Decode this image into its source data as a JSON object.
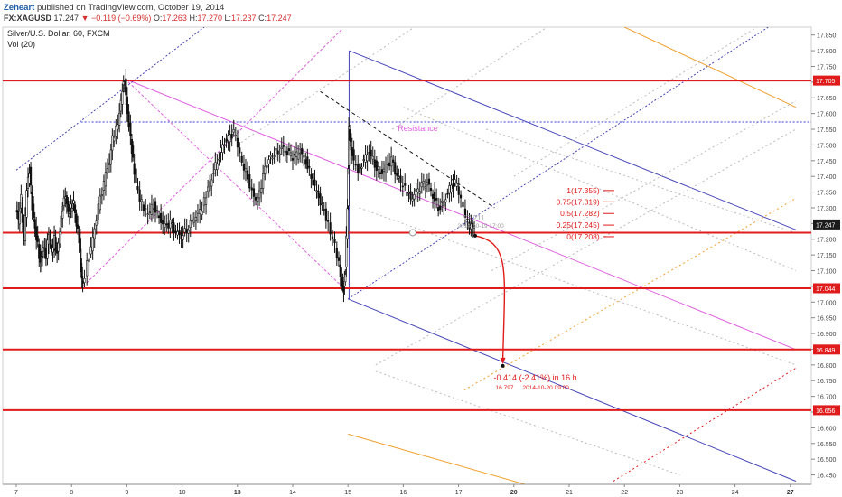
{
  "header": {
    "brand": "Zeheart",
    "published": " published on TradingView.com, October 19, 2014"
  },
  "symbol_line": {
    "symbol": "FX:XAGUSD",
    "last": "17.247",
    "change": "▼ −0.119 (−0.69%)",
    "o_label": "O:",
    "o": "17.263",
    "h_label": "H:",
    "h": "17.270",
    "l_label": "L:",
    "l": "17.237",
    "c_label": "C:",
    "c": "17.247"
  },
  "chart_title": "Silver/U.S. Dollar, 60, FXCM",
  "volume_label": "Vol (20)",
  "colors": {
    "support_line": "#e01b1b",
    "resistance_line": "#3a3ad8",
    "pitchfork_blue": "#4646b8",
    "pitchfork_magenta": "#e060e0",
    "orange": "#f0a030",
    "candle": "#111111",
    "fib_text": "#e01b1b",
    "current_price_bg": "#1a1a1a"
  },
  "chart_data": {
    "type": "candlestick",
    "y_ticks": [
      "17.850",
      "17.800",
      "17.750",
      "17.700",
      "17.650",
      "17.600",
      "17.550",
      "17.500",
      "17.450",
      "17.400",
      "17.350",
      "17.300",
      "17.250",
      "17.200",
      "17.150",
      "17.100",
      "17.050",
      "17.000",
      "16.950",
      "16.900",
      "16.850",
      "16.800",
      "16.750",
      "16.700",
      "16.650",
      "16.600",
      "16.550",
      "16.500",
      "16.450"
    ],
    "ylim": [
      16.42,
      17.875
    ],
    "x_ticks": [
      {
        "label": "7",
        "x": 0,
        "bold": false
      },
      {
        "label": "8",
        "x": 1,
        "bold": false
      },
      {
        "label": "9",
        "x": 2,
        "bold": false
      },
      {
        "label": "10",
        "x": 3,
        "bold": false
      },
      {
        "label": "13",
        "x": 4,
        "bold": true
      },
      {
        "label": "14",
        "x": 5,
        "bold": false
      },
      {
        "label": "15",
        "x": 6,
        "bold": false
      },
      {
        "label": "16",
        "x": 7,
        "bold": false
      },
      {
        "label": "17",
        "x": 8,
        "bold": false
      },
      {
        "label": "20",
        "x": 9,
        "bold": true
      },
      {
        "label": "21",
        "x": 10,
        "bold": false
      },
      {
        "label": "22",
        "x": 11,
        "bold": false
      },
      {
        "label": "23",
        "x": 12,
        "bold": false
      },
      {
        "label": "24",
        "x": 13,
        "bold": false
      },
      {
        "label": "27",
        "x": 14,
        "bold": true
      }
    ],
    "support_levels": [
      "17.705",
      "17.044",
      "16.849",
      "16.656"
    ],
    "extra_horizontal": [
      17.221
    ],
    "resistance": {
      "label": "Resistance",
      "value": 17.573
    },
    "current_price": "17.247",
    "fib_levels": [
      {
        "label": "1(17.355)",
        "value": 17.355
      },
      {
        "label": "0.75(17.319)",
        "value": 17.319
      },
      {
        "label": "0.5(17.282)",
        "value": 17.282
      },
      {
        "label": "0.25(17.245)",
        "value": 17.245
      },
      {
        "label": "0(17.208)",
        "value": 17.208
      }
    ],
    "projection": {
      "text": "-0.414 (-2.41%) in 16 h",
      "price": "16.797",
      "date": "2014-10-20  09:00",
      "start": {
        "x": 8.3,
        "y": 17.211
      },
      "end": {
        "x": 8.8,
        "y": 16.797
      }
    },
    "marker_label": "17.211",
    "marker_date": "2014-10-19  17:00",
    "close_path": [
      [
        0.0,
        17.3
      ],
      [
        0.05,
        17.26
      ],
      [
        0.1,
        17.33
      ],
      [
        0.15,
        17.2
      ],
      [
        0.2,
        17.36
      ],
      [
        0.25,
        17.42
      ],
      [
        0.3,
        17.3
      ],
      [
        0.35,
        17.23
      ],
      [
        0.4,
        17.18
      ],
      [
        0.45,
        17.12
      ],
      [
        0.5,
        17.18
      ],
      [
        0.55,
        17.15
      ],
      [
        0.6,
        17.22
      ],
      [
        0.65,
        17.16
      ],
      [
        0.7,
        17.2
      ],
      [
        0.75,
        17.15
      ],
      [
        0.8,
        17.23
      ],
      [
        0.85,
        17.3
      ],
      [
        0.9,
        17.34
      ],
      [
        0.95,
        17.28
      ],
      [
        1.0,
        17.3
      ],
      [
        1.05,
        17.32
      ],
      [
        1.1,
        17.25
      ],
      [
        1.15,
        17.2
      ],
      [
        1.18,
        17.1
      ],
      [
        1.21,
        17.05
      ],
      [
        1.3,
        17.12
      ],
      [
        1.4,
        17.2
      ],
      [
        1.5,
        17.3
      ],
      [
        1.6,
        17.38
      ],
      [
        1.7,
        17.45
      ],
      [
        1.75,
        17.52
      ],
      [
        1.82,
        17.55
      ],
      [
        1.88,
        17.6
      ],
      [
        1.93,
        17.68
      ],
      [
        1.97,
        17.7
      ],
      [
        2.02,
        17.6
      ],
      [
        2.08,
        17.52
      ],
      [
        2.12,
        17.45
      ],
      [
        2.18,
        17.38
      ],
      [
        2.25,
        17.33
      ],
      [
        2.32,
        17.3
      ],
      [
        2.4,
        17.28
      ],
      [
        2.5,
        17.31
      ],
      [
        2.6,
        17.27
      ],
      [
        2.7,
        17.24
      ],
      [
        2.8,
        17.25
      ],
      [
        2.9,
        17.22
      ],
      [
        3.0,
        17.21
      ],
      [
        3.1,
        17.23
      ],
      [
        3.2,
        17.26
      ],
      [
        3.3,
        17.28
      ],
      [
        3.38,
        17.3
      ],
      [
        3.45,
        17.34
      ],
      [
        3.55,
        17.4
      ],
      [
        3.65,
        17.45
      ],
      [
        3.75,
        17.5
      ],
      [
        3.85,
        17.52
      ],
      [
        3.95,
        17.54
      ],
      [
        4.02,
        17.5
      ],
      [
        4.1,
        17.44
      ],
      [
        4.2,
        17.4
      ],
      [
        4.28,
        17.35
      ],
      [
        4.38,
        17.32
      ],
      [
        4.48,
        17.4
      ],
      [
        4.55,
        17.44
      ],
      [
        4.65,
        17.47
      ],
      [
        4.75,
        17.48
      ],
      [
        4.85,
        17.49
      ],
      [
        4.95,
        17.47
      ],
      [
        5.05,
        17.46
      ],
      [
        5.15,
        17.48
      ],
      [
        5.25,
        17.45
      ],
      [
        5.35,
        17.4
      ],
      [
        5.45,
        17.35
      ],
      [
        5.55,
        17.3
      ],
      [
        5.62,
        17.27
      ],
      [
        5.7,
        17.22
      ],
      [
        5.78,
        17.18
      ],
      [
        5.85,
        17.12
      ],
      [
        5.9,
        17.06
      ],
      [
        5.93,
        17.04
      ],
      [
        5.96,
        17.1
      ],
      [
        6.0,
        17.3
      ],
      [
        6.02,
        17.55
      ],
      [
        6.06,
        17.5
      ],
      [
        6.12,
        17.45
      ],
      [
        6.2,
        17.42
      ],
      [
        6.3,
        17.45
      ],
      [
        6.4,
        17.48
      ],
      [
        6.5,
        17.44
      ],
      [
        6.6,
        17.41
      ],
      [
        6.7,
        17.43
      ],
      [
        6.8,
        17.45
      ],
      [
        6.9,
        17.4
      ],
      [
        6.97,
        17.38
      ],
      [
        7.05,
        17.36
      ],
      [
        7.15,
        17.33
      ],
      [
        7.25,
        17.35
      ],
      [
        7.35,
        17.37
      ],
      [
        7.45,
        17.38
      ],
      [
        7.55,
        17.34
      ],
      [
        7.65,
        17.3
      ],
      [
        7.75,
        17.32
      ],
      [
        7.85,
        17.36
      ],
      [
        7.95,
        17.38
      ],
      [
        8.02,
        17.35
      ],
      [
        8.1,
        17.3
      ],
      [
        8.18,
        17.25
      ],
      [
        8.24,
        17.24
      ],
      [
        8.3,
        17.247
      ]
    ],
    "lines": [
      {
        "name": "pitchfork-median",
        "color": "#e060e0",
        "width": 1,
        "dash": "",
        "x1": 1.97,
        "y1": 17.71,
        "x2": 14.1,
        "y2": 16.849
      },
      {
        "name": "pitchfork-lower-magenta",
        "color": "#e060e0",
        "width": 1,
        "dash": "3 2",
        "x1": 1.97,
        "y1": 17.71,
        "x2": 5.95,
        "y2": 17.04
      },
      {
        "name": "pitchfork-upper-magenta",
        "color": "#e060e0",
        "width": 1,
        "dash": "3 2",
        "x1": 1.21,
        "y1": 17.05,
        "x2": 5.9,
        "y2": 17.87
      },
      {
        "name": "blue-dotted-up-left",
        "color": "#4646b8",
        "width": 1,
        "dash": "2 2",
        "x1": 0,
        "y1": 17.42,
        "x2": 3.4,
        "y2": 17.875
      },
      {
        "name": "blue-channel-upper",
        "color": "#4646b8",
        "width": 1,
        "dash": "",
        "x1": 6.02,
        "y1": 17.8,
        "x2": 14.1,
        "y2": 17.23
      },
      {
        "name": "blue-channel-lower",
        "color": "#4646b8",
        "width": 1,
        "dash": "",
        "x1": 6.0,
        "y1": 17.01,
        "x2": 14.1,
        "y2": 16.43
      },
      {
        "name": "blue-dotted-median",
        "color": "#4646b8",
        "width": 1,
        "dash": "2 2",
        "x1": 6.0,
        "y1": 17.01,
        "x2": 13.6,
        "y2": 17.875
      },
      {
        "name": "blue-vertical-spike",
        "color": "#4646b8",
        "width": 1,
        "dash": "",
        "x1": 6.02,
        "y1": 17.01,
        "x2": 6.02,
        "y2": 17.8
      },
      {
        "name": "black-dashed-trend",
        "color": "#111111",
        "width": 1,
        "dash": "4 3",
        "x1": 5.5,
        "y1": 17.67,
        "x2": 8.65,
        "y2": 17.3
      },
      {
        "name": "orange-line-top",
        "color": "#f0a030",
        "width": 1,
        "dash": "",
        "x1": 11.0,
        "y1": 17.875,
        "x2": 14.1,
        "y2": 17.62
      },
      {
        "name": "orange-line-bottom",
        "color": "#f0a030",
        "width": 1,
        "dash": "",
        "x1": 6.0,
        "y1": 16.58,
        "x2": 9.2,
        "y2": 16.42
      },
      {
        "name": "orange-dotted-up",
        "color": "#f0a030",
        "width": 1,
        "dash": "2 3",
        "x1": 8.1,
        "y1": 16.72,
        "x2": 14.1,
        "y2": 17.33
      },
      {
        "name": "red-dotted-up",
        "color": "#e01b1b",
        "width": 1,
        "dash": "2 3",
        "x1": 10.8,
        "y1": 16.43,
        "x2": 14.1,
        "y2": 16.79
      },
      {
        "name": "gray-dotted-1",
        "color": "#bbbbbb",
        "width": 1,
        "dash": "2 3",
        "x1": 4.0,
        "y1": 17.5,
        "x2": 7.2,
        "y2": 17.875
      },
      {
        "name": "gray-dotted-2",
        "color": "#bbbbbb",
        "width": 1,
        "dash": "2 3",
        "x1": 6.8,
        "y1": 17.55,
        "x2": 9.6,
        "y2": 17.875
      },
      {
        "name": "gray-dotted-3",
        "color": "#bbbbbb",
        "width": 1,
        "dash": "2 3",
        "x1": 9.0,
        "y1": 17.4,
        "x2": 13.4,
        "y2": 17.875
      },
      {
        "name": "gray-dotted-4",
        "color": "#bbbbbb",
        "width": 1,
        "dash": "2 3",
        "x1": 8.6,
        "y1": 17.1,
        "x2": 14.1,
        "y2": 17.64
      },
      {
        "name": "gray-dotted-5",
        "color": "#bbbbbb",
        "width": 1,
        "dash": "2 3",
        "x1": 6.5,
        "y1": 16.8,
        "x2": 14.1,
        "y2": 17.55
      },
      {
        "name": "gray-dotted-down-1",
        "color": "#bbbbbb",
        "width": 1,
        "dash": "2 3",
        "x1": 7.0,
        "y1": 17.62,
        "x2": 14.1,
        "y2": 17.1
      },
      {
        "name": "gray-dotted-down-2",
        "color": "#bbbbbb",
        "width": 1,
        "dash": "2 3",
        "x1": 6.2,
        "y1": 17.3,
        "x2": 14.1,
        "y2": 16.8
      },
      {
        "name": "gray-dotted-down-3",
        "color": "#bbbbbb",
        "width": 1,
        "dash": "2 3",
        "x1": 6.5,
        "y1": 16.78,
        "x2": 12.0,
        "y2": 16.45
      },
      {
        "name": "gray-dotted-down-4",
        "color": "#bbbbbb",
        "width": 1,
        "dash": "2 3",
        "x1": 8.5,
        "y1": 17.55,
        "x2": 14.1,
        "y2": 17.22
      }
    ]
  }
}
